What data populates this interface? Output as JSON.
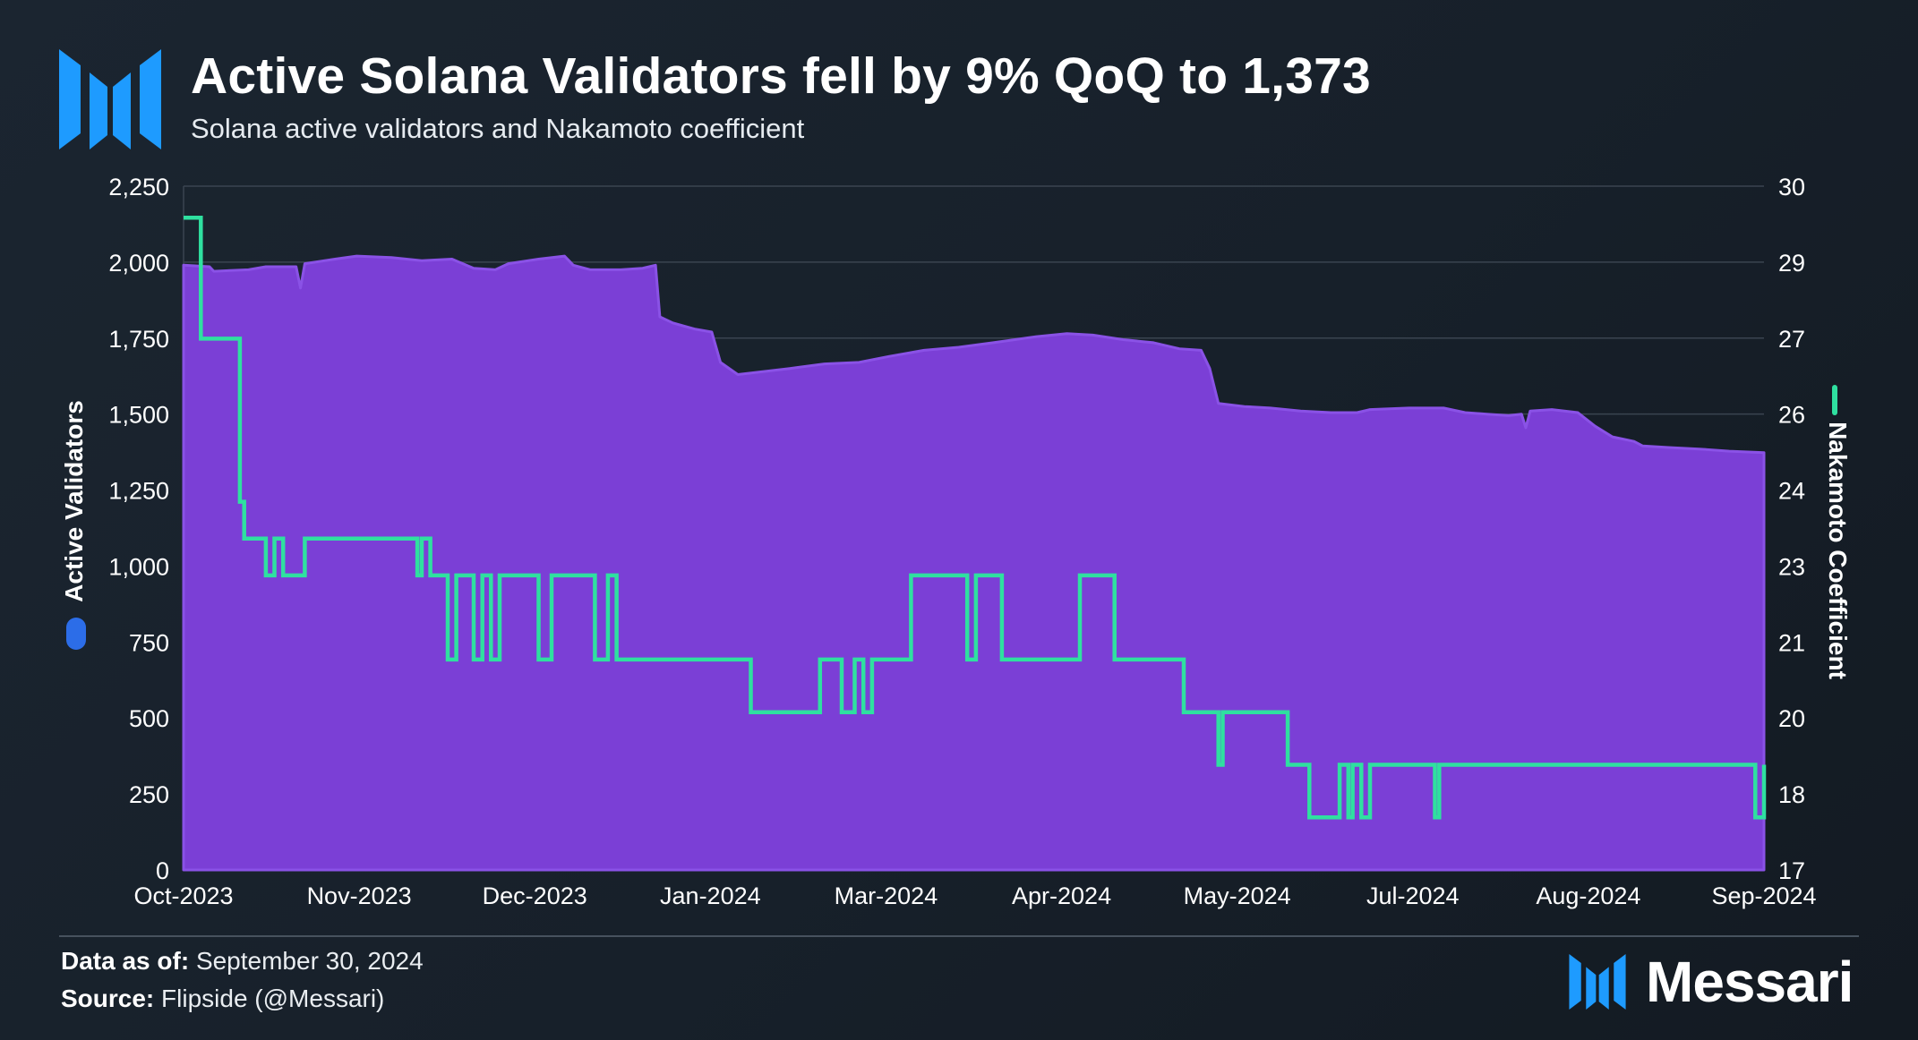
{
  "header": {
    "title": "Active Solana Validators fell by 9% QoQ to 1,373",
    "subtitle": "Solana active validators and Nakamoto coefficient"
  },
  "footer": {
    "data_as_of_label": "Data as of:",
    "data_as_of_value": "September 30, 2024",
    "source_label": "Source:",
    "source_value": "Flipside (@Messari)",
    "brand": "Messari"
  },
  "icons": {
    "top_logo": "messari-logo-icon",
    "bottom_logo": "messari-logo-icon"
  },
  "colors": {
    "area_fill": "#7b3fd6",
    "area_edge": "#8a52e6",
    "line": "#2fe0a0",
    "left_axis_marker": "#2c6de8",
    "logo": "#1e9bff",
    "grid": "#3a4450"
  },
  "chart_data": {
    "type": "area",
    "ylabel": "Active Validators",
    "y2label": "Nakamoto Coefficient",
    "ylim": [
      0,
      2250
    ],
    "y2lim": [
      17,
      30
    ],
    "yticks": [
      "0",
      "250",
      "500",
      "750",
      "1,000",
      "1,250",
      "1,500",
      "1,750",
      "2,000",
      "2,250"
    ],
    "y2ticks": [
      "17",
      "18",
      "20",
      "21",
      "23",
      "24",
      "26",
      "27",
      "29",
      "30"
    ],
    "xticks": [
      "Oct-2023",
      "Nov-2023",
      "Dec-2023",
      "Jan-2024",
      "Mar-2024",
      "Apr-2024",
      "May-2024",
      "Jul-2024",
      "Aug-2024",
      "Sep-2024"
    ],
    "x_start": "2023-10-01",
    "x_end": "2024-09-30",
    "grid": true,
    "series": [
      {
        "name": "Active Validators",
        "axis": "left",
        "type": "area",
        "points": [
          [
            "2023-10-01",
            1990
          ],
          [
            "2023-10-07",
            1985
          ],
          [
            "2023-10-08",
            1970
          ],
          [
            "2023-10-16",
            1975
          ],
          [
            "2023-10-20",
            1985
          ],
          [
            "2023-10-27",
            1985
          ],
          [
            "2023-10-28",
            1915
          ],
          [
            "2023-10-29",
            1995
          ],
          [
            "2023-11-05",
            2010
          ],
          [
            "2023-11-10",
            2020
          ],
          [
            "2023-11-18",
            2015
          ],
          [
            "2023-11-25",
            2005
          ],
          [
            "2023-12-02",
            2010
          ],
          [
            "2023-12-07",
            1980
          ],
          [
            "2023-12-12",
            1975
          ],
          [
            "2023-12-15",
            1995
          ],
          [
            "2023-12-22",
            2010
          ],
          [
            "2023-12-28",
            2020
          ],
          [
            "2023-12-30",
            1990
          ],
          [
            "2024-01-03",
            1975
          ],
          [
            "2024-01-10",
            1975
          ],
          [
            "2024-01-15",
            1980
          ],
          [
            "2024-01-18",
            1990
          ],
          [
            "2024-01-19",
            1820
          ],
          [
            "2024-01-22",
            1800
          ],
          [
            "2024-01-27",
            1780
          ],
          [
            "2024-01-31",
            1770
          ],
          [
            "2024-02-02",
            1670
          ],
          [
            "2024-02-06",
            1630
          ],
          [
            "2024-02-12",
            1640
          ],
          [
            "2024-02-18",
            1650
          ],
          [
            "2024-02-26",
            1665
          ],
          [
            "2024-03-05",
            1670
          ],
          [
            "2024-03-12",
            1690
          ],
          [
            "2024-03-20",
            1710
          ],
          [
            "2024-03-28",
            1720
          ],
          [
            "2024-04-05",
            1735
          ],
          [
            "2024-04-15",
            1755
          ],
          [
            "2024-04-22",
            1765
          ],
          [
            "2024-04-28",
            1760
          ],
          [
            "2024-05-05",
            1745
          ],
          [
            "2024-05-12",
            1735
          ],
          [
            "2024-05-18",
            1715
          ],
          [
            "2024-05-23",
            1710
          ],
          [
            "2024-05-25",
            1650
          ],
          [
            "2024-05-27",
            1535
          ],
          [
            "2024-06-02",
            1525
          ],
          [
            "2024-06-08",
            1520
          ],
          [
            "2024-06-15",
            1510
          ],
          [
            "2024-06-22",
            1505
          ],
          [
            "2024-06-28",
            1505
          ],
          [
            "2024-07-01",
            1515
          ],
          [
            "2024-07-10",
            1520
          ],
          [
            "2024-07-18",
            1520
          ],
          [
            "2024-07-23",
            1505
          ],
          [
            "2024-07-28",
            1500
          ],
          [
            "2024-08-02",
            1495
          ],
          [
            "2024-08-05",
            1500
          ],
          [
            "2024-08-06",
            1455
          ],
          [
            "2024-08-07",
            1510
          ],
          [
            "2024-08-12",
            1515
          ],
          [
            "2024-08-18",
            1505
          ],
          [
            "2024-08-22",
            1460
          ],
          [
            "2024-08-26",
            1425
          ],
          [
            "2024-08-31",
            1410
          ],
          [
            "2024-09-02",
            1395
          ],
          [
            "2024-09-08",
            1390
          ],
          [
            "2024-09-15",
            1385
          ],
          [
            "2024-09-22",
            1378
          ],
          [
            "2024-09-30",
            1373
          ]
        ]
      },
      {
        "name": "Nakamoto Coefficient",
        "axis": "right",
        "type": "step",
        "points": [
          [
            "2023-10-01",
            29.4
          ],
          [
            "2023-10-05",
            29.4
          ],
          [
            "2023-10-05",
            27.1
          ],
          [
            "2023-10-14",
            27.1
          ],
          [
            "2023-10-14",
            24.0
          ],
          [
            "2023-10-15",
            24.0
          ],
          [
            "2023-10-15",
            23.3
          ],
          [
            "2023-10-20",
            23.3
          ],
          [
            "2023-10-20",
            22.6
          ],
          [
            "2023-10-22",
            22.6
          ],
          [
            "2023-10-22",
            23.3
          ],
          [
            "2023-10-24",
            23.3
          ],
          [
            "2023-10-24",
            22.6
          ],
          [
            "2023-10-29",
            22.6
          ],
          [
            "2023-10-29",
            23.3
          ],
          [
            "2023-11-24",
            23.3
          ],
          [
            "2023-11-24",
            22.6
          ],
          [
            "2023-11-25",
            22.6
          ],
          [
            "2023-11-25",
            23.3
          ],
          [
            "2023-11-27",
            23.3
          ],
          [
            "2023-11-27",
            22.6
          ],
          [
            "2023-12-01",
            22.6
          ],
          [
            "2023-12-01",
            21.0
          ],
          [
            "2023-12-03",
            21.0
          ],
          [
            "2023-12-03",
            22.6
          ],
          [
            "2023-12-07",
            22.6
          ],
          [
            "2023-12-07",
            21.0
          ],
          [
            "2023-12-09",
            21.0
          ],
          [
            "2023-12-09",
            22.6
          ],
          [
            "2023-12-11",
            22.6
          ],
          [
            "2023-12-11",
            21.0
          ],
          [
            "2023-12-13",
            21.0
          ],
          [
            "2023-12-13",
            22.6
          ],
          [
            "2023-12-22",
            22.6
          ],
          [
            "2023-12-22",
            21.0
          ],
          [
            "2023-12-25",
            21.0
          ],
          [
            "2023-12-25",
            22.6
          ],
          [
            "2024-01-04",
            22.6
          ],
          [
            "2024-01-04",
            21.0
          ],
          [
            "2024-01-07",
            21.0
          ],
          [
            "2024-01-07",
            22.6
          ],
          [
            "2024-01-09",
            22.6
          ],
          [
            "2024-01-09",
            21.0
          ],
          [
            "2024-02-09",
            21.0
          ],
          [
            "2024-02-09",
            20.0
          ],
          [
            "2024-02-25",
            20.0
          ],
          [
            "2024-02-25",
            21.0
          ],
          [
            "2024-03-01",
            21.0
          ],
          [
            "2024-03-01",
            20.0
          ],
          [
            "2024-03-04",
            20.0
          ],
          [
            "2024-03-04",
            21.0
          ],
          [
            "2024-03-06",
            21.0
          ],
          [
            "2024-03-06",
            20.0
          ],
          [
            "2024-03-08",
            20.0
          ],
          [
            "2024-03-08",
            21.0
          ],
          [
            "2024-03-17",
            21.0
          ],
          [
            "2024-03-17",
            22.6
          ],
          [
            "2024-03-30",
            22.6
          ],
          [
            "2024-03-30",
            21.0
          ],
          [
            "2024-04-01",
            21.0
          ],
          [
            "2024-04-01",
            22.6
          ],
          [
            "2024-04-07",
            22.6
          ],
          [
            "2024-04-07",
            21.0
          ],
          [
            "2024-04-25",
            21.0
          ],
          [
            "2024-04-25",
            22.6
          ],
          [
            "2024-05-03",
            22.6
          ],
          [
            "2024-05-03",
            21.0
          ],
          [
            "2024-05-19",
            21.0
          ],
          [
            "2024-05-19",
            20.0
          ],
          [
            "2024-05-27",
            20.0
          ],
          [
            "2024-05-27",
            19.0
          ],
          [
            "2024-05-28",
            19.0
          ],
          [
            "2024-05-28",
            20.0
          ],
          [
            "2024-06-12",
            20.0
          ],
          [
            "2024-06-12",
            19.0
          ],
          [
            "2024-06-17",
            19.0
          ],
          [
            "2024-06-17",
            18.0
          ],
          [
            "2024-06-24",
            18.0
          ],
          [
            "2024-06-24",
            19.0
          ],
          [
            "2024-06-26",
            19.0
          ],
          [
            "2024-06-26",
            18.0
          ],
          [
            "2024-06-27",
            18.0
          ],
          [
            "2024-06-27",
            19.0
          ],
          [
            "2024-06-29",
            19.0
          ],
          [
            "2024-06-29",
            18.0
          ],
          [
            "2024-07-01",
            18.0
          ],
          [
            "2024-07-01",
            19.0
          ],
          [
            "2024-07-16",
            19.0
          ],
          [
            "2024-07-16",
            18.0
          ],
          [
            "2024-07-17",
            18.0
          ],
          [
            "2024-07-17",
            19.0
          ],
          [
            "2024-09-28",
            19.0
          ],
          [
            "2024-09-28",
            18.0
          ],
          [
            "2024-09-30",
            18.0
          ],
          [
            "2024-09-30",
            19.0
          ]
        ]
      }
    ]
  }
}
